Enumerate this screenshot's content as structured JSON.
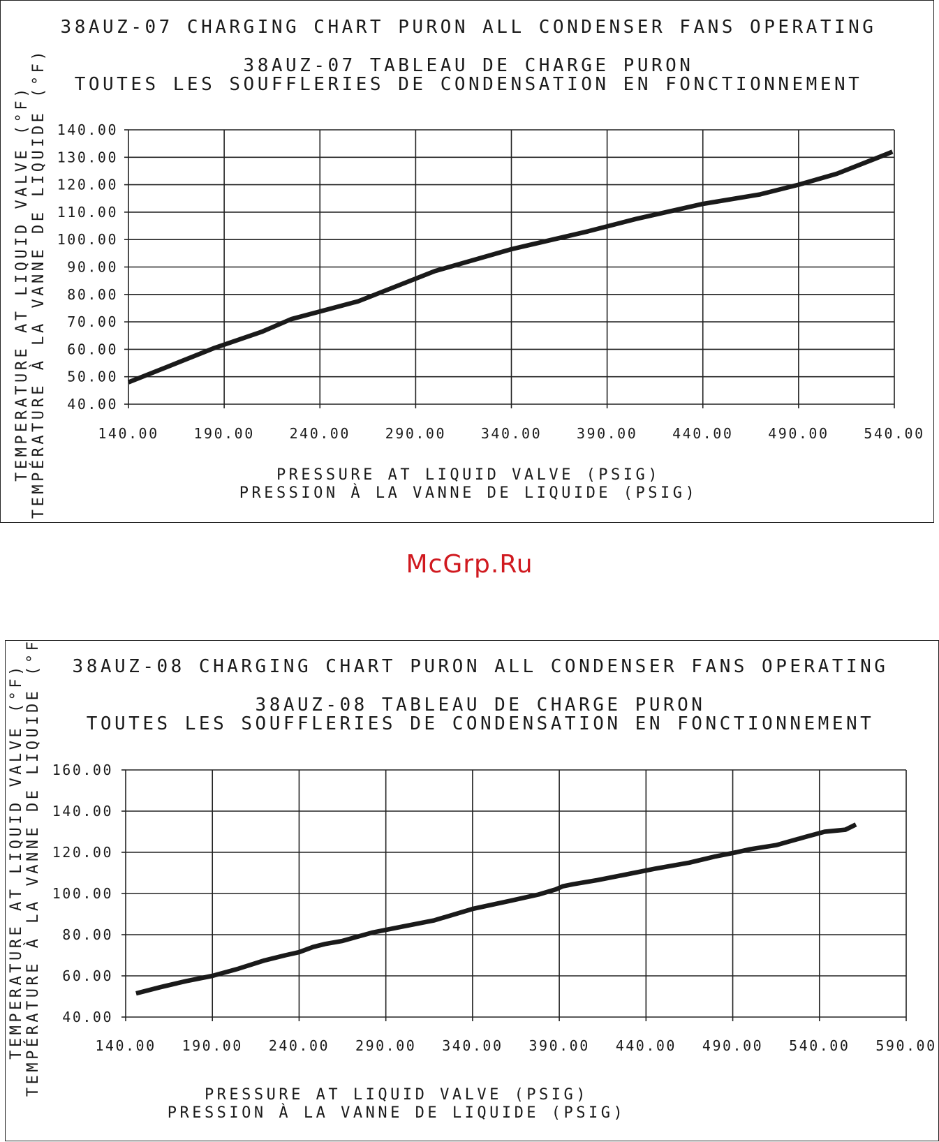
{
  "watermark": "McGrp.Ru",
  "chart_data": [
    {
      "type": "line",
      "title": "38AUZ-07 CHARGING CHART PURON ALL CONDENSER FANS OPERATING",
      "subtitle_lines": [
        "38AUZ-07 TABLEAU DE CHARGE PURON",
        "TOUTES LES SOUFFLERIES DE CONDENSATION EN FONCTIONNEMENT"
      ],
      "xlabel_lines": [
        "PRESSURE AT LIQUID VALVE (PSIG)",
        "PRESSION À LA VANNE DE LIQUIDE (PSIG)"
      ],
      "ylabel_lines": [
        "TEMPERATURE AT LIQUID VALVE (°F)",
        "TEMPÉRATURE À LA VANNE DE LIQUIDE (°F)"
      ],
      "xlim": [
        140,
        540
      ],
      "ylim": [
        40,
        140
      ],
      "x_ticks": [
        "140.00",
        "190.00",
        "240.00",
        "290.00",
        "340.00",
        "390.00",
        "440.00",
        "490.00",
        "540.00"
      ],
      "y_ticks": [
        "40.00",
        "50.00",
        "60.00",
        "70.00",
        "80.00",
        "90.00",
        "100.00",
        "110.00",
        "120.00",
        "130.00",
        "140.00"
      ],
      "grid": true,
      "series": [
        {
          "x": [
            140,
            160,
            185,
            210,
            225,
            260,
            300,
            340,
            380,
            405,
            440,
            470,
            490,
            510,
            530,
            539
          ],
          "y": [
            48,
            53.5,
            60.5,
            66.5,
            71,
            77.5,
            88.5,
            96.5,
            103,
            107.5,
            113,
            116.5,
            120,
            124,
            129.5,
            132
          ]
        }
      ]
    },
    {
      "type": "line",
      "title": "38AUZ-08 CHARGING CHART PURON ALL CONDENSER FANS OPERATING",
      "subtitle_lines": [
        "38AUZ-08 TABLEAU DE CHARGE PURON",
        "TOUTES LES SOUFFLERIES DE CONDENSATION EN FONCTIONNEMENT"
      ],
      "xlabel_lines": [
        "PRESSURE AT LIQUID VALVE (PSIG)",
        "PRESSION À LA VANNE DE LIQUIDE (PSIG)"
      ],
      "ylabel_lines": [
        "TEMPERATURE AT LIQUID VALVE (°F)",
        "TEMPÉRATURE À LA VANNE DE LIQUIDE (°F)"
      ],
      "xlim": [
        140,
        590
      ],
      "ylim": [
        40,
        160
      ],
      "x_ticks": [
        "140.00",
        "190.00",
        "240.00",
        "290.00",
        "340.00",
        "390.00",
        "440.00",
        "490.00",
        "540.00",
        "590.00"
      ],
      "y_ticks": [
        "40.00",
        "60.00",
        "80.00",
        "100.00",
        "120.00",
        "140.00",
        "160.00"
      ],
      "grid": true,
      "series": [
        {
          "x": [
            146,
            160,
            175,
            190,
            205,
            220,
            232,
            240,
            248,
            255,
            265,
            282,
            300,
            318,
            340,
            362,
            378,
            388,
            392,
            398,
            412,
            430,
            445,
            465,
            480,
            492,
            500,
            515,
            532,
            543,
            555,
            561
          ],
          "y": [
            51.5,
            54.5,
            57.5,
            60,
            63.5,
            67.5,
            70,
            71.5,
            74,
            75.5,
            77,
            81,
            84,
            87,
            92.5,
            96.5,
            99.5,
            102,
            103.5,
            104.5,
            106.5,
            109.5,
            112,
            115,
            118,
            120,
            121.5,
            123.5,
            127.5,
            130,
            131,
            133.5
          ]
        }
      ]
    }
  ]
}
